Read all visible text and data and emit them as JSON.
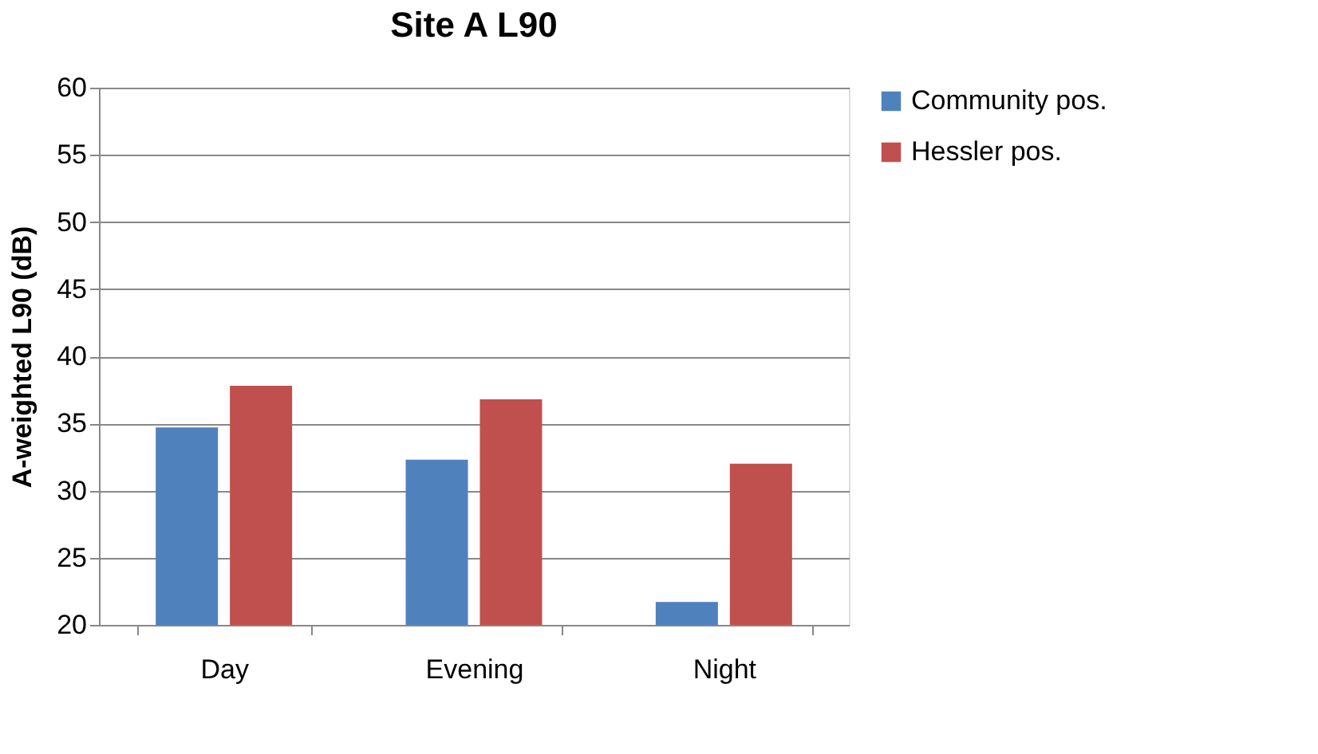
{
  "chart_data": {
    "type": "bar",
    "title": "Site A L90",
    "ylabel": "A-weighted L90 (dB)",
    "categories": [
      "Day",
      "Evening",
      "Night"
    ],
    "series": [
      {
        "name": "Community pos.",
        "color": "#4f81bd",
        "values": [
          34.7,
          32.3,
          21.7
        ]
      },
      {
        "name": "Hessler pos.",
        "color": "#c0504d",
        "values": [
          37.8,
          36.8,
          32.0
        ]
      }
    ],
    "ylim": [
      20,
      60
    ],
    "yticks": [
      20,
      25,
      30,
      35,
      40,
      45,
      50,
      55,
      60
    ],
    "grid": "y",
    "legend": "right"
  }
}
